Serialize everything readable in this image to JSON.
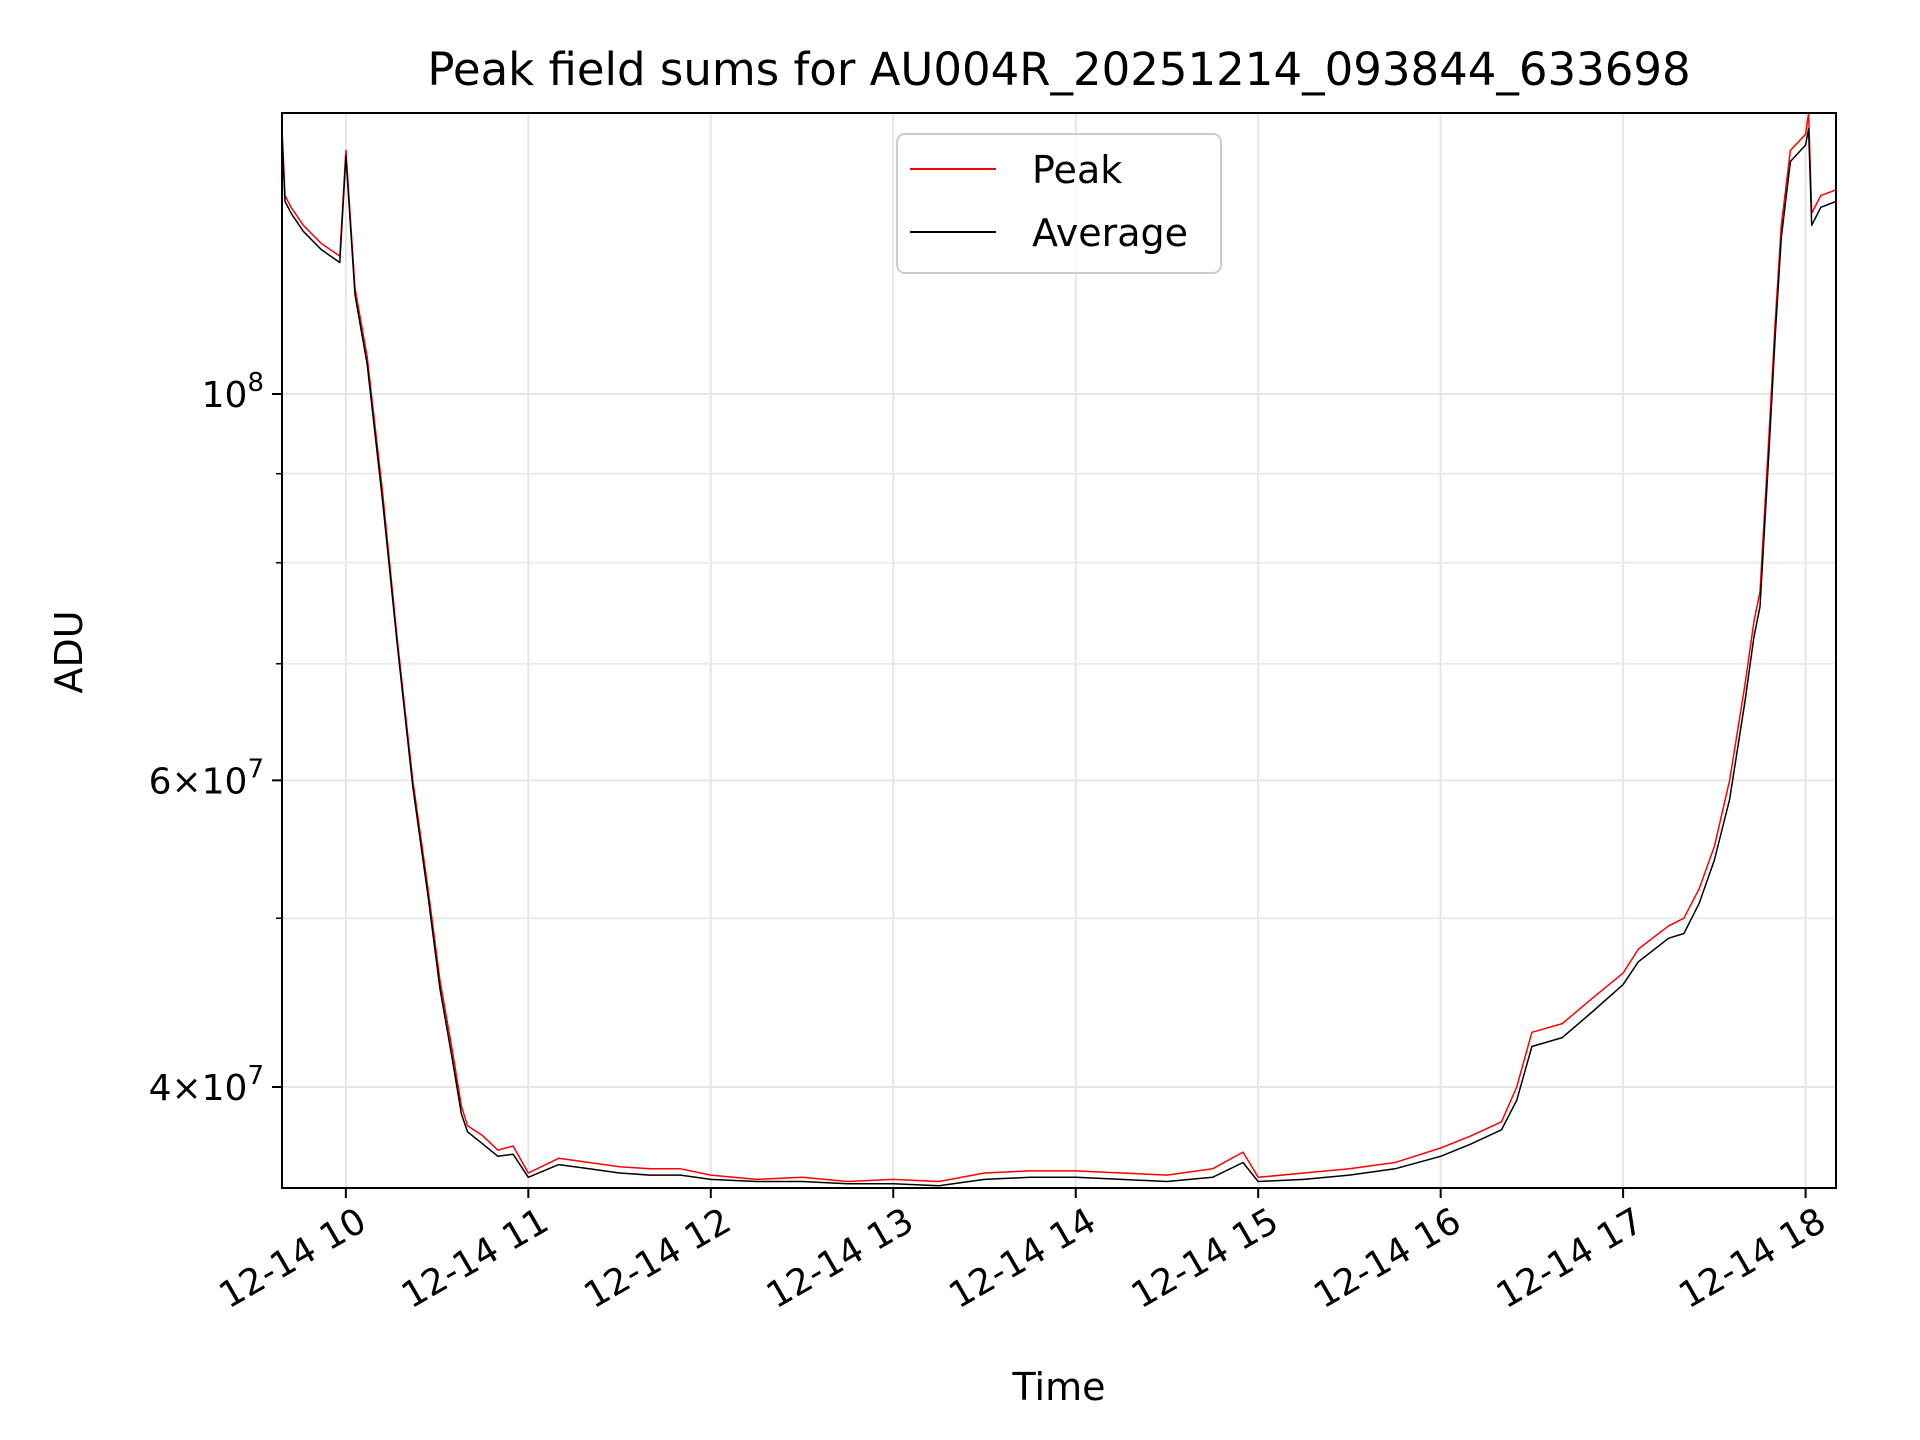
{
  "chart_data": {
    "type": "line",
    "title": "Peak field sums for AU004R_20251214_093844_633698",
    "xlabel": "Time",
    "ylabel": "ADU",
    "y_scale": "log",
    "xlim": [
      "12-14 09:39",
      "12-14 18:10"
    ],
    "ylim": [
      35000000,
      145000000
    ],
    "x_ticks": [
      "12-14 10",
      "12-14 11",
      "12-14 12",
      "12-14 13",
      "12-14 14",
      "12-14 15",
      "12-14 16",
      "12-14 17",
      "12-14 18"
    ],
    "y_ticks": [
      {
        "value": 40000000,
        "mantissa": "4",
        "exponent": "7"
      },
      {
        "value": 60000000,
        "mantissa": "6",
        "exponent": "7"
      },
      {
        "value": 100000000,
        "mantissa": "",
        "exponent": "8"
      }
    ],
    "y_minor_ticks": [
      50000000,
      70000000,
      80000000,
      90000000
    ],
    "grid": true,
    "legend_position": "upper center",
    "series": [
      {
        "name": "Peak",
        "color": "#ff0000",
        "x": [
          "12-14 09:39",
          "12-14 09:40",
          "12-14 09:42",
          "12-14 09:46",
          "12-14 09:52",
          "12-14 09:58",
          "12-14 10:00",
          "12-14 10:03",
          "12-14 10:07",
          "12-14 10:12",
          "12-14 10:17",
          "12-14 10:22",
          "12-14 10:27",
          "12-14 10:31",
          "12-14 10:35",
          "12-14 10:38",
          "12-14 10:40",
          "12-14 10:45",
          "12-14 10:50",
          "12-14 10:55",
          "12-14 11:00",
          "12-14 11:10",
          "12-14 11:20",
          "12-14 11:30",
          "12-14 11:40",
          "12-14 11:50",
          "12-14 12:00",
          "12-14 12:15",
          "12-14 12:30",
          "12-14 12:45",
          "12-14 13:00",
          "12-14 13:15",
          "12-14 13:30",
          "12-14 13:45",
          "12-14 14:00",
          "12-14 14:15",
          "12-14 14:30",
          "12-14 14:45",
          "12-14 14:55",
          "12-14 15:00",
          "12-14 15:15",
          "12-14 15:30",
          "12-14 15:45",
          "12-14 16:00",
          "12-14 16:10",
          "12-14 16:20",
          "12-14 16:25",
          "12-14 16:30",
          "12-14 16:40",
          "12-14 16:50",
          "12-14 17:00",
          "12-14 17:05",
          "12-14 17:15",
          "12-14 17:20",
          "12-14 17:25",
          "12-14 17:30",
          "12-14 17:35",
          "12-14 17:40",
          "12-14 17:43",
          "12-14 17:45",
          "12-14 17:48",
          "12-14 17:50",
          "12-14 17:52",
          "12-14 17:55",
          "12-14 18:00",
          "12-14 18:01",
          "12-14 18:02",
          "12-14 18:05",
          "12-14 18:10"
        ],
        "y": [
          142000000,
          130000000,
          128000000,
          125000000,
          122000000,
          120000000,
          138000000,
          115000000,
          105000000,
          88000000,
          72000000,
          60000000,
          52000000,
          46000000,
          42000000,
          39000000,
          38000000,
          37500000,
          36800000,
          37000000,
          35700000,
          36400000,
          36200000,
          36000000,
          35900000,
          35900000,
          35600000,
          35400000,
          35500000,
          35300000,
          35400000,
          35300000,
          35700000,
          35800000,
          35800000,
          35700000,
          35600000,
          35900000,
          36700000,
          35500000,
          35700000,
          35900000,
          36200000,
          36900000,
          37500000,
          38200000,
          40000000,
          43000000,
          43500000,
          45000000,
          46500000,
          48000000,
          49500000,
          50000000,
          52000000,
          55000000,
          60000000,
          68000000,
          74000000,
          77000000,
          95000000,
          110000000,
          125000000,
          138000000,
          141000000,
          145000000,
          127000000,
          130000000,
          131000000
        ]
      },
      {
        "name": "Average",
        "color": "#000000",
        "x": [
          "12-14 09:39",
          "12-14 09:40",
          "12-14 09:42",
          "12-14 09:46",
          "12-14 09:52",
          "12-14 09:58",
          "12-14 10:00",
          "12-14 10:03",
          "12-14 10:07",
          "12-14 10:12",
          "12-14 10:17",
          "12-14 10:22",
          "12-14 10:27",
          "12-14 10:31",
          "12-14 10:35",
          "12-14 10:38",
          "12-14 10:40",
          "12-14 10:45",
          "12-14 10:50",
          "12-14 10:55",
          "12-14 11:00",
          "12-14 11:10",
          "12-14 11:20",
          "12-14 11:30",
          "12-14 11:40",
          "12-14 11:50",
          "12-14 12:00",
          "12-14 12:15",
          "12-14 12:30",
          "12-14 12:45",
          "12-14 13:00",
          "12-14 13:15",
          "12-14 13:30",
          "12-14 13:45",
          "12-14 14:00",
          "12-14 14:15",
          "12-14 14:30",
          "12-14 14:45",
          "12-14 14:55",
          "12-14 15:00",
          "12-14 15:15",
          "12-14 15:30",
          "12-14 15:45",
          "12-14 16:00",
          "12-14 16:10",
          "12-14 16:20",
          "12-14 16:25",
          "12-14 16:30",
          "12-14 16:40",
          "12-14 16:50",
          "12-14 17:00",
          "12-14 17:05",
          "12-14 17:15",
          "12-14 17:20",
          "12-14 17:25",
          "12-14 17:30",
          "12-14 17:35",
          "12-14 17:40",
          "12-14 17:43",
          "12-14 17:45",
          "12-14 17:48",
          "12-14 17:50",
          "12-14 17:52",
          "12-14 17:55",
          "12-14 18:00",
          "12-14 18:01",
          "12-14 18:02",
          "12-14 18:05",
          "12-14 18:10"
        ],
        "y": [
          141000000,
          129000000,
          127000000,
          124000000,
          121000000,
          119000000,
          137000000,
          114000000,
          104000000,
          87000000,
          71500000,
          59500000,
          51500000,
          45500000,
          41500000,
          38600000,
          37700000,
          37100000,
          36500000,
          36600000,
          35500000,
          36100000,
          35900000,
          35700000,
          35600000,
          35600000,
          35400000,
          35300000,
          35300000,
          35200000,
          35200000,
          35100000,
          35400000,
          35500000,
          35500000,
          35400000,
          35300000,
          35500000,
          36200000,
          35300000,
          35400000,
          35600000,
          35900000,
          36500000,
          37100000,
          37800000,
          39300000,
          42200000,
          42700000,
          44200000,
          45800000,
          47200000,
          48700000,
          49000000,
          51000000,
          54000000,
          58500000,
          66500000,
          72500000,
          75500000,
          93000000,
          108000000,
          123000000,
          136000000,
          139000000,
          142000000,
          125000000,
          128000000,
          129000000
        ]
      }
    ]
  }
}
